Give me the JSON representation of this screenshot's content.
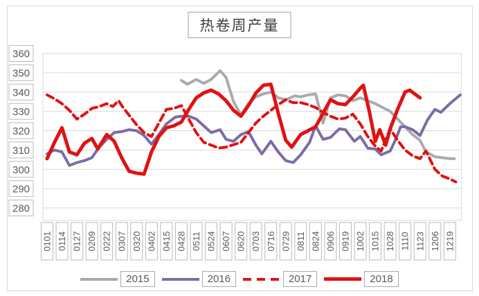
{
  "title": "热卷周产量",
  "legend": {
    "items": [
      "2015",
      "2016",
      "2017",
      "2018"
    ]
  },
  "chart_data": {
    "type": "line",
    "title": "热卷周产量",
    "xlabel": "",
    "ylabel": "",
    "grid": true,
    "legend_position": "bottom",
    "y_axis": {
      "min": 280,
      "max": 360,
      "step": 10,
      "ticks": [
        360,
        350,
        340,
        330,
        320,
        310,
        300,
        290,
        280
      ]
    },
    "categories": [
      "0101",
      "0114",
      "0127",
      "0209",
      "0222",
      "0307",
      "0320",
      "0402",
      "0415",
      "0428",
      "0511",
      "0524",
      "0607",
      "0620",
      "0703",
      "0716",
      "0729",
      "0811",
      "0824",
      "0906",
      "0919",
      "1002",
      "1015",
      "1028",
      "1110",
      "1123",
      "1206",
      "1219"
    ],
    "series": [
      {
        "name": "2015",
        "color": "#a9a9af",
        "style": "solid",
        "width": 4,
        "points": [
          [
            9,
            346
          ],
          [
            9.4,
            344
          ],
          [
            10,
            346.5
          ],
          [
            10.5,
            344.5
          ],
          [
            11,
            346.5
          ],
          [
            11.6,
            351
          ],
          [
            12,
            347.5
          ],
          [
            12.5,
            335
          ],
          [
            13,
            328
          ],
          [
            13.5,
            334
          ],
          [
            14,
            337.5
          ],
          [
            14.5,
            339
          ],
          [
            15,
            340
          ],
          [
            15.5,
            337
          ],
          [
            16,
            336
          ],
          [
            16.6,
            338
          ],
          [
            17,
            337.5
          ],
          [
            17.5,
            338.5
          ],
          [
            18,
            339
          ],
          [
            18.5,
            324
          ],
          [
            19,
            337
          ],
          [
            19.5,
            338.5
          ],
          [
            20,
            338
          ],
          [
            20.5,
            335.5
          ],
          [
            21,
            337
          ],
          [
            21.5,
            335.5
          ],
          [
            22,
            334
          ],
          [
            22.5,
            332
          ],
          [
            23,
            330
          ],
          [
            23.5,
            326
          ],
          [
            24,
            322
          ],
          [
            24.5,
            318
          ],
          [
            25,
            315
          ],
          [
            25.4,
            309
          ],
          [
            26,
            306.5
          ],
          [
            26.5,
            306
          ],
          [
            27,
            305.5
          ],
          [
            27.3,
            305.5
          ]
        ]
      },
      {
        "name": "2016",
        "color": "#7e6ba5",
        "style": "solid",
        "width": 4,
        "points": [
          [
            0,
            308
          ],
          [
            0.5,
            310
          ],
          [
            1,
            309
          ],
          [
            1.5,
            302
          ],
          [
            2,
            303.5
          ],
          [
            2.5,
            304.5
          ],
          [
            3,
            306
          ],
          [
            3.5,
            311.5
          ],
          [
            4,
            315.5
          ],
          [
            4.5,
            319
          ],
          [
            5,
            319.5
          ],
          [
            5.5,
            320.5
          ],
          [
            6,
            320
          ],
          [
            6.5,
            317.5
          ],
          [
            7,
            313
          ],
          [
            7.5,
            318
          ],
          [
            8,
            323.5
          ],
          [
            8.6,
            327
          ],
          [
            9,
            327.5
          ],
          [
            9.5,
            327.5
          ],
          [
            10,
            326
          ],
          [
            10.5,
            322.5
          ],
          [
            11,
            319
          ],
          [
            11.6,
            320.5
          ],
          [
            12,
            315.5
          ],
          [
            12.5,
            314.5
          ],
          [
            13,
            318
          ],
          [
            13.5,
            319.5
          ],
          [
            14,
            312.5
          ],
          [
            14.4,
            308
          ],
          [
            15,
            314.5
          ],
          [
            15.5,
            309
          ],
          [
            16,
            304.5
          ],
          [
            16.5,
            303.5
          ],
          [
            17,
            307.5
          ],
          [
            17.6,
            314
          ],
          [
            18,
            322.5
          ],
          [
            18.5,
            315.5
          ],
          [
            19,
            316.5
          ],
          [
            19.6,
            321
          ],
          [
            20,
            320.5
          ],
          [
            20.6,
            314.5
          ],
          [
            21,
            317
          ],
          [
            21.5,
            311
          ],
          [
            22,
            310.5
          ],
          [
            22.4,
            307.5
          ],
          [
            23,
            309.5
          ],
          [
            23.4,
            316
          ],
          [
            23.7,
            322
          ],
          [
            24,
            322
          ],
          [
            24.5,
            320.5
          ],
          [
            25,
            317.5
          ],
          [
            25.5,
            325.5
          ],
          [
            26,
            331
          ],
          [
            26.4,
            329.5
          ],
          [
            27,
            334
          ],
          [
            27.7,
            338.5
          ]
        ]
      },
      {
        "name": "2017",
        "color": "#e01212",
        "style": "dashed",
        "width": 4,
        "points": [
          [
            0,
            338.5
          ],
          [
            0.5,
            336.5
          ],
          [
            1,
            334
          ],
          [
            1.5,
            330.5
          ],
          [
            2,
            326
          ],
          [
            2.5,
            328.5
          ],
          [
            3,
            331.5
          ],
          [
            3.5,
            332.5
          ],
          [
            4,
            334
          ],
          [
            4.4,
            332.5
          ],
          [
            4.8,
            335.5
          ],
          [
            5,
            333
          ],
          [
            5.5,
            328
          ],
          [
            6,
            323
          ],
          [
            6.5,
            319
          ],
          [
            7,
            317
          ],
          [
            7.5,
            324
          ],
          [
            8,
            331
          ],
          [
            8.5,
            331.5
          ],
          [
            9,
            333
          ],
          [
            9.5,
            326
          ],
          [
            10,
            319
          ],
          [
            10.5,
            314
          ],
          [
            11,
            312.5
          ],
          [
            11.5,
            311
          ],
          [
            12,
            311.5
          ],
          [
            13,
            314
          ],
          [
            13.5,
            319
          ],
          [
            14,
            324
          ],
          [
            14.5,
            327.5
          ],
          [
            15,
            330.5
          ],
          [
            15.5,
            333.5
          ],
          [
            16,
            336
          ],
          [
            16.5,
            334.5
          ],
          [
            17,
            334.5
          ],
          [
            17.5,
            333.5
          ],
          [
            18,
            332
          ],
          [
            18.5,
            329.5
          ],
          [
            19,
            327.5
          ],
          [
            19.5,
            326
          ],
          [
            20,
            326.5
          ],
          [
            20.5,
            328.5
          ],
          [
            21,
            323.5
          ],
          [
            21.5,
            317
          ],
          [
            22,
            312
          ],
          [
            22.4,
            309.5
          ],
          [
            23,
            321
          ],
          [
            23.5,
            315
          ],
          [
            24,
            310
          ],
          [
            24.5,
            307
          ],
          [
            25,
            305.5
          ],
          [
            25.4,
            309.5
          ],
          [
            26,
            300
          ],
          [
            26.5,
            296.5
          ],
          [
            27,
            295
          ],
          [
            27.4,
            293.5
          ]
        ]
      },
      {
        "name": "2018",
        "color": "#e01212",
        "style": "solid",
        "width": 5,
        "points": [
          [
            0,
            305.5
          ],
          [
            0.5,
            314
          ],
          [
            1,
            321.5
          ],
          [
            1.5,
            309
          ],
          [
            2,
            307.5
          ],
          [
            2.5,
            313.5
          ],
          [
            3,
            316
          ],
          [
            3.4,
            310.5
          ],
          [
            4,
            318
          ],
          [
            4.5,
            314.5
          ],
          [
            5,
            306
          ],
          [
            5.5,
            299
          ],
          [
            6,
            298
          ],
          [
            6.5,
            297.5
          ],
          [
            7,
            309
          ],
          [
            7.5,
            317
          ],
          [
            8,
            321.5
          ],
          [
            8.5,
            322.5
          ],
          [
            9,
            324.5
          ],
          [
            9.5,
            331
          ],
          [
            10,
            337
          ],
          [
            10.5,
            339.5
          ],
          [
            11,
            341
          ],
          [
            11.5,
            339
          ],
          [
            12,
            335.5
          ],
          [
            12.5,
            330.5
          ],
          [
            13,
            327.5
          ],
          [
            13.5,
            333
          ],
          [
            14,
            339.5
          ],
          [
            14.5,
            343.5
          ],
          [
            15,
            344
          ],
          [
            15.5,
            329
          ],
          [
            16,
            315
          ],
          [
            16.4,
            311.5
          ],
          [
            17,
            318
          ],
          [
            17.5,
            320
          ],
          [
            18,
            322
          ],
          [
            18.5,
            329
          ],
          [
            19,
            336
          ],
          [
            19.5,
            334
          ],
          [
            20,
            333.5
          ],
          [
            20.5,
            337.5
          ],
          [
            21,
            342
          ],
          [
            21.2,
            343.5
          ],
          [
            21.6,
            330
          ],
          [
            22,
            314.5
          ],
          [
            22.3,
            320.5
          ],
          [
            22.7,
            312.5
          ],
          [
            23,
            321
          ],
          [
            23.5,
            331
          ],
          [
            24,
            340
          ],
          [
            24.3,
            341
          ],
          [
            25,
            337
          ]
        ]
      }
    ]
  }
}
